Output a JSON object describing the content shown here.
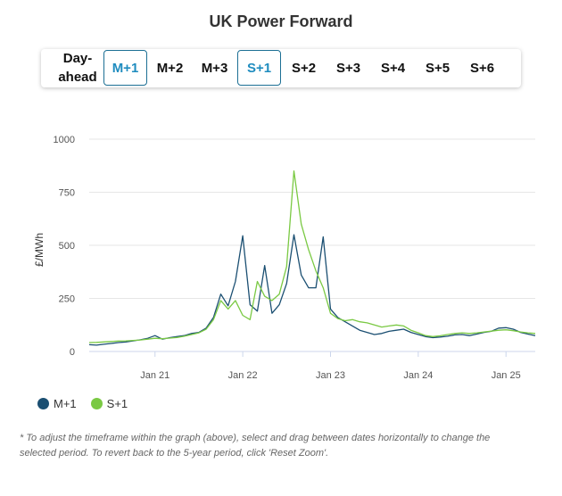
{
  "title": "UK Power Forward",
  "tabs": [
    {
      "label": "Day-ahead",
      "active": false
    },
    {
      "label": "M+1",
      "active": true
    },
    {
      "label": "M+2",
      "active": false
    },
    {
      "label": "M+3",
      "active": false
    },
    {
      "label": "S+1",
      "active": true
    },
    {
      "label": "S+2",
      "active": false
    },
    {
      "label": "S+3",
      "active": false
    },
    {
      "label": "S+4",
      "active": false
    },
    {
      "label": "S+5",
      "active": false
    },
    {
      "label": "S+6",
      "active": false
    }
  ],
  "colors": {
    "accent": "#1f8cbf",
    "series_m1": "#1b4f72",
    "series_s1": "#7ac943",
    "grid": "#e6e6e6"
  },
  "note": "* To adjust the timeframe within the graph (above), select and drag between dates horizontally to change the selected period. To revert back to the 5-year period, click 'Reset Zoom'.",
  "chart_data": {
    "type": "line",
    "ylabel": "£/MWh",
    "xlabel": "",
    "ylim": [
      0,
      1000
    ],
    "yticks": [
      0,
      250,
      500,
      750,
      1000
    ],
    "xticks": [
      "Jan 21",
      "Jan 22",
      "Jan 23",
      "Jan 24",
      "Jan 25"
    ],
    "x_range": [
      "2020-04",
      "2025-05"
    ],
    "grid": true,
    "legend_position": "bottom-left",
    "series": [
      {
        "name": "M+1",
        "color": "#1b4f72",
        "points": [
          [
            "2020-04",
            32
          ],
          [
            "2020-05",
            30
          ],
          [
            "2020-06",
            34
          ],
          [
            "2020-07",
            38
          ],
          [
            "2020-08",
            42
          ],
          [
            "2020-09",
            45
          ],
          [
            "2020-10",
            50
          ],
          [
            "2020-11",
            55
          ],
          [
            "2020-12",
            62
          ],
          [
            "2021-01",
            75
          ],
          [
            "2021-02",
            58
          ],
          [
            "2021-03",
            65
          ],
          [
            "2021-04",
            70
          ],
          [
            "2021-05",
            75
          ],
          [
            "2021-06",
            85
          ],
          [
            "2021-07",
            90
          ],
          [
            "2021-08",
            110
          ],
          [
            "2021-09",
            160
          ],
          [
            "2021-10",
            270
          ],
          [
            "2021-11",
            215
          ],
          [
            "2021-12",
            330
          ],
          [
            "2022-01",
            545
          ],
          [
            "2022-02",
            220
          ],
          [
            "2022-03",
            190
          ],
          [
            "2022-04",
            405
          ],
          [
            "2022-05",
            180
          ],
          [
            "2022-06",
            220
          ],
          [
            "2022-07",
            320
          ],
          [
            "2022-08",
            550
          ],
          [
            "2022-09",
            360
          ],
          [
            "2022-10",
            300
          ],
          [
            "2022-11",
            300
          ],
          [
            "2022-12",
            540
          ],
          [
            "2023-01",
            200
          ],
          [
            "2023-02",
            160
          ],
          [
            "2023-03",
            140
          ],
          [
            "2023-04",
            120
          ],
          [
            "2023-05",
            100
          ],
          [
            "2023-06",
            90
          ],
          [
            "2023-07",
            80
          ],
          [
            "2023-08",
            85
          ],
          [
            "2023-09",
            95
          ],
          [
            "2023-10",
            100
          ],
          [
            "2023-11",
            105
          ],
          [
            "2023-12",
            90
          ],
          [
            "2024-01",
            80
          ],
          [
            "2024-02",
            70
          ],
          [
            "2024-03",
            65
          ],
          [
            "2024-04",
            68
          ],
          [
            "2024-05",
            72
          ],
          [
            "2024-06",
            78
          ],
          [
            "2024-07",
            80
          ],
          [
            "2024-08",
            75
          ],
          [
            "2024-09",
            82
          ],
          [
            "2024-10",
            90
          ],
          [
            "2024-11",
            95
          ],
          [
            "2024-12",
            110
          ],
          [
            "2025-01",
            112
          ],
          [
            "2025-02",
            105
          ],
          [
            "2025-03",
            90
          ],
          [
            "2025-04",
            82
          ],
          [
            "2025-05",
            75
          ]
        ]
      },
      {
        "name": "S+1",
        "color": "#7ac943",
        "points": [
          [
            "2020-04",
            42
          ],
          [
            "2020-05",
            43
          ],
          [
            "2020-06",
            45
          ],
          [
            "2020-07",
            47
          ],
          [
            "2020-08",
            49
          ],
          [
            "2020-09",
            50
          ],
          [
            "2020-10",
            52
          ],
          [
            "2020-11",
            54
          ],
          [
            "2020-12",
            58
          ],
          [
            "2021-01",
            62
          ],
          [
            "2021-02",
            60
          ],
          [
            "2021-03",
            63
          ],
          [
            "2021-04",
            66
          ],
          [
            "2021-05",
            72
          ],
          [
            "2021-06",
            80
          ],
          [
            "2021-07",
            88
          ],
          [
            "2021-08",
            105
          ],
          [
            "2021-09",
            150
          ],
          [
            "2021-10",
            240
          ],
          [
            "2021-11",
            200
          ],
          [
            "2021-12",
            240
          ],
          [
            "2022-01",
            170
          ],
          [
            "2022-02",
            150
          ],
          [
            "2022-03",
            330
          ],
          [
            "2022-04",
            260
          ],
          [
            "2022-05",
            240
          ],
          [
            "2022-06",
            270
          ],
          [
            "2022-07",
            400
          ],
          [
            "2022-08",
            850
          ],
          [
            "2022-09",
            600
          ],
          [
            "2022-10",
            480
          ],
          [
            "2022-11",
            380
          ],
          [
            "2022-12",
            300
          ],
          [
            "2023-01",
            180
          ],
          [
            "2023-02",
            155
          ],
          [
            "2023-03",
            145
          ],
          [
            "2023-04",
            150
          ],
          [
            "2023-05",
            140
          ],
          [
            "2023-06",
            135
          ],
          [
            "2023-07",
            125
          ],
          [
            "2023-08",
            115
          ],
          [
            "2023-09",
            120
          ],
          [
            "2023-10",
            125
          ],
          [
            "2023-11",
            120
          ],
          [
            "2023-12",
            100
          ],
          [
            "2024-01",
            88
          ],
          [
            "2024-02",
            75
          ],
          [
            "2024-03",
            70
          ],
          [
            "2024-04",
            74
          ],
          [
            "2024-05",
            80
          ],
          [
            "2024-06",
            85
          ],
          [
            "2024-07",
            88
          ],
          [
            "2024-08",
            85
          ],
          [
            "2024-09",
            88
          ],
          [
            "2024-10",
            92
          ],
          [
            "2024-11",
            96
          ],
          [
            "2024-12",
            100
          ],
          [
            "2025-01",
            102
          ],
          [
            "2025-02",
            98
          ],
          [
            "2025-03",
            92
          ],
          [
            "2025-04",
            88
          ],
          [
            "2025-05",
            85
          ]
        ]
      }
    ]
  }
}
